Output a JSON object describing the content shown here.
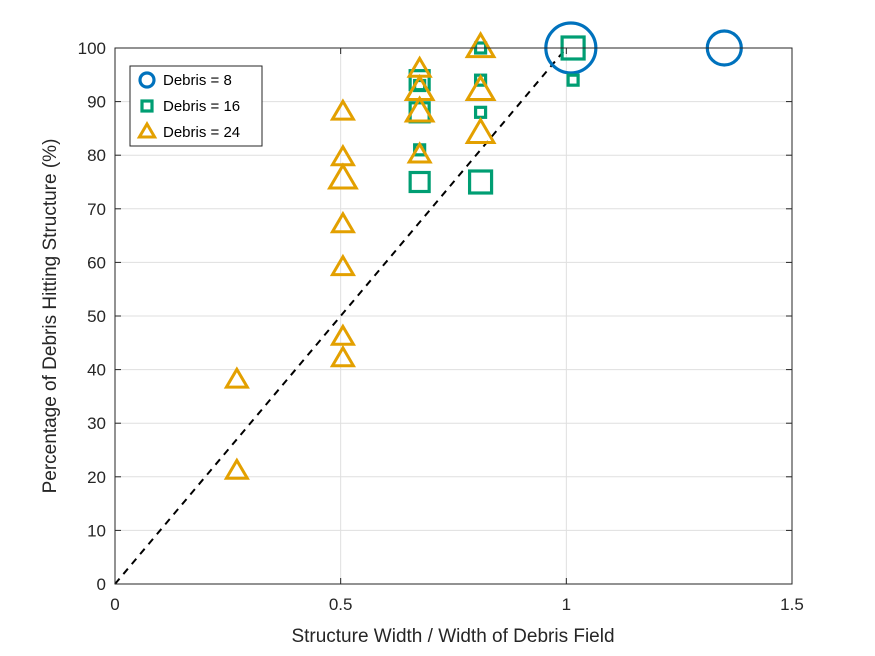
{
  "chart_data": {
    "type": "scatter",
    "xlabel": "Structure Width / Width of Debris Field",
    "ylabel": "Percentage of Debris Hitting Structure (%)",
    "xlim": [
      0,
      1.5
    ],
    "ylim": [
      0,
      100
    ],
    "xticks": [
      0,
      0.5,
      1,
      1.5
    ],
    "xtick_labels": [
      "0",
      "0.5",
      "1",
      "1.5"
    ],
    "yticks": [
      0,
      10,
      20,
      30,
      40,
      50,
      60,
      70,
      80,
      90,
      100
    ],
    "ytick_labels": [
      "0",
      "10",
      "20",
      "30",
      "40",
      "50",
      "60",
      "70",
      "80",
      "90",
      "100"
    ],
    "grid": true,
    "legend_position": "top-left",
    "reference_line": {
      "style": "dashed",
      "color": "#000000",
      "from": [
        0,
        0
      ],
      "to": [
        1.0,
        100
      ]
    },
    "series": [
      {
        "name": "Debris = 8",
        "marker": "circle",
        "color": "#0072BD",
        "points": [
          {
            "x": 1.01,
            "y": 100,
            "size": "large"
          },
          {
            "x": 1.35,
            "y": 100,
            "size": "medium"
          }
        ]
      },
      {
        "name": "Debris = 16",
        "marker": "square",
        "color": "#009E73",
        "points": [
          {
            "x": 0.675,
            "y": 94,
            "size": "medium"
          },
          {
            "x": 0.675,
            "y": 93,
            "size": "small"
          },
          {
            "x": 0.675,
            "y": 88,
            "size": "medium"
          },
          {
            "x": 0.675,
            "y": 81,
            "size": "small"
          },
          {
            "x": 0.675,
            "y": 75,
            "size": "medium"
          },
          {
            "x": 0.81,
            "y": 100,
            "size": "small"
          },
          {
            "x": 0.81,
            "y": 94,
            "size": "small"
          },
          {
            "x": 0.81,
            "y": 88,
            "size": "small"
          },
          {
            "x": 0.81,
            "y": 75,
            "size": "large"
          },
          {
            "x": 1.015,
            "y": 100,
            "size": "large"
          },
          {
            "x": 1.015,
            "y": 94,
            "size": "small"
          }
        ]
      },
      {
        "name": "Debris = 24",
        "marker": "triangle",
        "color": "#E3A000",
        "points": [
          {
            "x": 0.27,
            "y": 38,
            "size": "medium"
          },
          {
            "x": 0.27,
            "y": 21,
            "size": "medium"
          },
          {
            "x": 0.505,
            "y": 88,
            "size": "medium"
          },
          {
            "x": 0.505,
            "y": 79.5,
            "size": "medium"
          },
          {
            "x": 0.505,
            "y": 75.5,
            "size": "large"
          },
          {
            "x": 0.505,
            "y": 67,
            "size": "medium"
          },
          {
            "x": 0.505,
            "y": 59,
            "size": "medium"
          },
          {
            "x": 0.505,
            "y": 46,
            "size": "medium"
          },
          {
            "x": 0.505,
            "y": 42,
            "size": "medium"
          },
          {
            "x": 0.675,
            "y": 96,
            "size": "medium"
          },
          {
            "x": 0.675,
            "y": 92,
            "size": "large"
          },
          {
            "x": 0.675,
            "y": 88,
            "size": "large"
          },
          {
            "x": 0.675,
            "y": 80,
            "size": "medium"
          },
          {
            "x": 0.81,
            "y": 100,
            "size": "large"
          },
          {
            "x": 0.81,
            "y": 92,
            "size": "large"
          },
          {
            "x": 0.81,
            "y": 84,
            "size": "large"
          }
        ]
      }
    ]
  }
}
